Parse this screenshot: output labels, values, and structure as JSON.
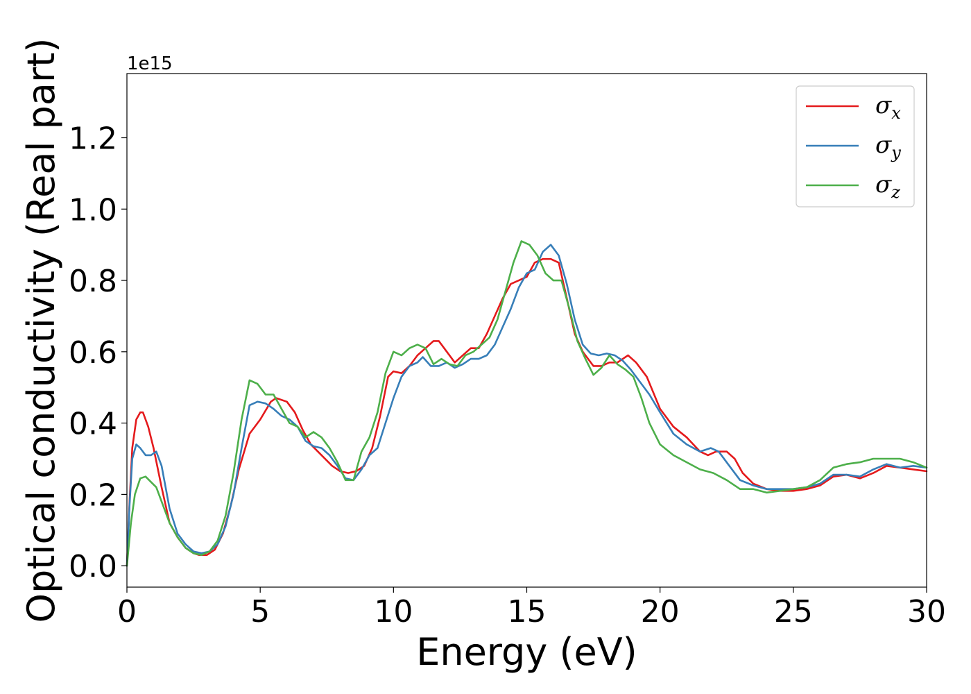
{
  "chart_data": {
    "type": "line",
    "title": "",
    "xlabel": "Energy (eV)",
    "ylabel": "Optical conductivity (Real part)",
    "y_offset_label": "1e15",
    "xlim": [
      0,
      30
    ],
    "ylim": [
      -0.06,
      1.38
    ],
    "xticks": [
      0,
      5,
      10,
      15,
      20,
      25,
      30
    ],
    "xtick_labels": [
      "0",
      "5",
      "10",
      "15",
      "20",
      "25",
      "30"
    ],
    "yticks": [
      0.0,
      0.2,
      0.4,
      0.6,
      0.8,
      1.0,
      1.2
    ],
    "ytick_labels": [
      "0.0",
      "0.2",
      "0.4",
      "0.6",
      "0.8",
      "1.0",
      "1.2"
    ],
    "grid": false,
    "legend_position": "top-right",
    "series": [
      {
        "name": "σx",
        "symbol": "σ",
        "subscript": "x",
        "color": "#e41a1c",
        "x": [
          0,
          0.1,
          0.2,
          0.35,
          0.5,
          0.6,
          0.8,
          1.0,
          1.3,
          1.6,
          1.9,
          2.2,
          2.5,
          2.7,
          3.0,
          3.3,
          3.6,
          3.9,
          4.2,
          4.6,
          5.0,
          5.4,
          5.6,
          6.0,
          6.3,
          6.6,
          6.9,
          7.3,
          7.7,
          8.0,
          8.3,
          8.6,
          8.9,
          9.2,
          9.5,
          9.8,
          10.0,
          10.3,
          10.6,
          10.9,
          11.2,
          11.5,
          11.7,
          12.0,
          12.3,
          12.6,
          12.9,
          13.2,
          13.5,
          13.8,
          14.1,
          14.4,
          14.7,
          15.0,
          15.3,
          15.6,
          15.9,
          16.2,
          16.5,
          16.8,
          17.1,
          17.5,
          17.8,
          18.1,
          18.4,
          18.8,
          19.1,
          19.5,
          20.0,
          20.5,
          21.0,
          21.5,
          21.8,
          22.1,
          22.5,
          22.8,
          23.1,
          23.5,
          24.0,
          24.5,
          25.0,
          25.5,
          26.0,
          26.5,
          27.0,
          27.5,
          28.0,
          28.5,
          29.0,
          29.5,
          30.0
        ],
        "y": [
          0.0,
          0.18,
          0.33,
          0.41,
          0.43,
          0.43,
          0.39,
          0.33,
          0.22,
          0.12,
          0.08,
          0.05,
          0.035,
          0.03,
          0.03,
          0.045,
          0.09,
          0.17,
          0.27,
          0.37,
          0.41,
          0.46,
          0.47,
          0.46,
          0.43,
          0.38,
          0.34,
          0.31,
          0.28,
          0.265,
          0.26,
          0.265,
          0.28,
          0.33,
          0.42,
          0.53,
          0.545,
          0.54,
          0.56,
          0.59,
          0.61,
          0.63,
          0.63,
          0.6,
          0.57,
          0.59,
          0.61,
          0.61,
          0.65,
          0.7,
          0.75,
          0.79,
          0.8,
          0.81,
          0.85,
          0.86,
          0.86,
          0.85,
          0.75,
          0.65,
          0.6,
          0.56,
          0.56,
          0.57,
          0.57,
          0.59,
          0.57,
          0.53,
          0.44,
          0.39,
          0.36,
          0.32,
          0.31,
          0.32,
          0.32,
          0.3,
          0.26,
          0.23,
          0.215,
          0.21,
          0.21,
          0.215,
          0.225,
          0.25,
          0.255,
          0.245,
          0.26,
          0.28,
          0.275,
          0.27,
          0.265
        ]
      },
      {
        "name": "σy",
        "symbol": "σ",
        "subscript": "y",
        "color": "#377eb8",
        "x": [
          0,
          0.1,
          0.2,
          0.35,
          0.5,
          0.7,
          0.9,
          1.1,
          1.3,
          1.6,
          1.9,
          2.2,
          2.5,
          2.8,
          3.1,
          3.4,
          3.7,
          4.0,
          4.3,
          4.6,
          4.9,
          5.2,
          5.5,
          5.8,
          6.1,
          6.4,
          6.7,
          7.0,
          7.3,
          7.6,
          7.9,
          8.2,
          8.5,
          8.8,
          9.1,
          9.4,
          9.7,
          10.0,
          10.3,
          10.6,
          10.9,
          11.1,
          11.4,
          11.7,
          12.0,
          12.3,
          12.6,
          12.9,
          13.2,
          13.5,
          13.8,
          14.1,
          14.4,
          14.7,
          15.0,
          15.3,
          15.6,
          15.9,
          16.2,
          16.5,
          16.8,
          17.1,
          17.4,
          17.7,
          18.0,
          18.3,
          18.6,
          18.9,
          19.2,
          19.6,
          20.0,
          20.5,
          21.0,
          21.5,
          21.9,
          22.2,
          22.6,
          23.0,
          23.5,
          24.0,
          24.5,
          25.0,
          25.5,
          26.0,
          26.5,
          27.0,
          27.5,
          28.0,
          28.5,
          29.0,
          29.5,
          30.0
        ],
        "y": [
          0.0,
          0.17,
          0.3,
          0.34,
          0.33,
          0.31,
          0.31,
          0.32,
          0.28,
          0.16,
          0.09,
          0.06,
          0.04,
          0.035,
          0.04,
          0.06,
          0.11,
          0.2,
          0.33,
          0.45,
          0.46,
          0.455,
          0.44,
          0.42,
          0.41,
          0.39,
          0.35,
          0.335,
          0.33,
          0.31,
          0.28,
          0.245,
          0.24,
          0.27,
          0.31,
          0.33,
          0.4,
          0.47,
          0.53,
          0.56,
          0.57,
          0.585,
          0.56,
          0.56,
          0.57,
          0.555,
          0.565,
          0.58,
          0.58,
          0.59,
          0.62,
          0.67,
          0.72,
          0.78,
          0.82,
          0.83,
          0.88,
          0.9,
          0.87,
          0.79,
          0.69,
          0.62,
          0.595,
          0.59,
          0.595,
          0.59,
          0.575,
          0.55,
          0.52,
          0.48,
          0.43,
          0.37,
          0.34,
          0.32,
          0.33,
          0.32,
          0.28,
          0.24,
          0.225,
          0.215,
          0.215,
          0.215,
          0.22,
          0.23,
          0.255,
          0.255,
          0.25,
          0.27,
          0.285,
          0.275,
          0.28,
          0.275
        ]
      },
      {
        "name": "σz",
        "symbol": "σ",
        "subscript": "z",
        "color": "#4daf4a",
        "x": [
          0,
          0.15,
          0.3,
          0.5,
          0.7,
          0.9,
          1.1,
          1.3,
          1.6,
          1.9,
          2.2,
          2.5,
          2.8,
          3.1,
          3.4,
          3.7,
          4.0,
          4.3,
          4.6,
          4.9,
          5.2,
          5.5,
          5.8,
          6.1,
          6.4,
          6.7,
          7.0,
          7.3,
          7.6,
          7.9,
          8.2,
          8.5,
          8.8,
          9.1,
          9.4,
          9.7,
          10.0,
          10.3,
          10.6,
          10.9,
          11.2,
          11.5,
          11.8,
          12.1,
          12.4,
          12.7,
          13.0,
          13.3,
          13.6,
          13.9,
          14.2,
          14.5,
          14.8,
          15.1,
          15.4,
          15.7,
          16.0,
          16.3,
          16.6,
          16.9,
          17.2,
          17.5,
          17.8,
          18.1,
          18.4,
          18.7,
          19.0,
          19.3,
          19.6,
          20.0,
          20.5,
          21.0,
          21.5,
          22.0,
          22.5,
          23.0,
          23.5,
          24.0,
          24.5,
          25.0,
          25.5,
          26.0,
          26.5,
          27.0,
          27.5,
          28.0,
          28.5,
          29.0,
          29.5,
          30.0
        ],
        "y": [
          0.0,
          0.12,
          0.2,
          0.245,
          0.25,
          0.235,
          0.22,
          0.18,
          0.12,
          0.08,
          0.05,
          0.035,
          0.03,
          0.04,
          0.07,
          0.14,
          0.26,
          0.41,
          0.52,
          0.51,
          0.48,
          0.48,
          0.44,
          0.4,
          0.39,
          0.36,
          0.375,
          0.36,
          0.33,
          0.29,
          0.24,
          0.24,
          0.32,
          0.36,
          0.43,
          0.54,
          0.6,
          0.59,
          0.61,
          0.62,
          0.61,
          0.565,
          0.58,
          0.565,
          0.56,
          0.59,
          0.6,
          0.62,
          0.64,
          0.69,
          0.77,
          0.85,
          0.91,
          0.9,
          0.87,
          0.82,
          0.8,
          0.8,
          0.72,
          0.63,
          0.58,
          0.535,
          0.555,
          0.59,
          0.565,
          0.55,
          0.53,
          0.47,
          0.4,
          0.34,
          0.31,
          0.29,
          0.27,
          0.26,
          0.24,
          0.215,
          0.215,
          0.205,
          0.21,
          0.215,
          0.22,
          0.24,
          0.275,
          0.285,
          0.29,
          0.3,
          0.3,
          0.3,
          0.29,
          0.275
        ]
      }
    ]
  }
}
